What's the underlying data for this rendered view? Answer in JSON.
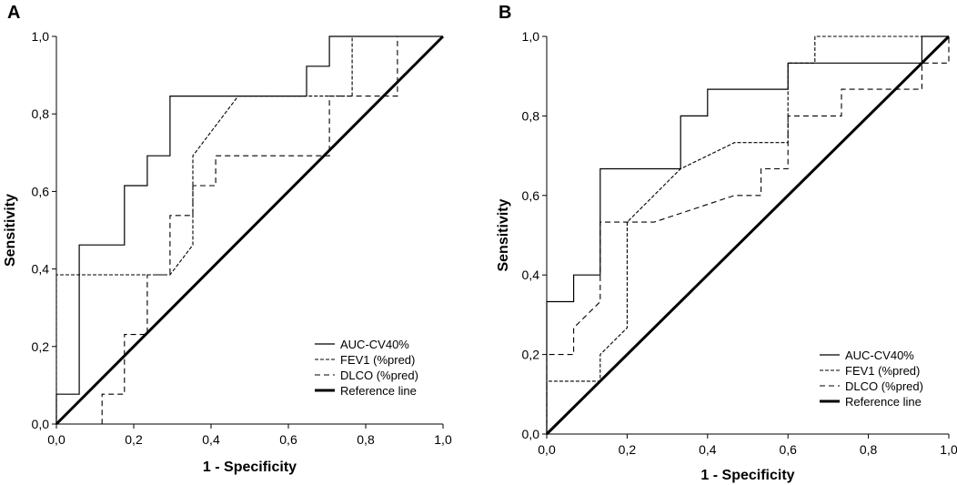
{
  "chart_data": [
    {
      "type": "line",
      "panel_label": "A",
      "xlabel": "1 - Specificity",
      "ylabel": "Sensitivity",
      "xlim": [
        0,
        1
      ],
      "ylim": [
        0,
        1
      ],
      "xticks": [
        "0,0",
        "0,2",
        "0,4",
        "0,6",
        "0,8",
        "1,0"
      ],
      "yticks": [
        "0,0",
        "0,2",
        "0,4",
        "0,6",
        "0,8",
        "1,0"
      ],
      "grid": false,
      "legend_position": "bottom-right",
      "series": [
        {
          "name": "AUC-CV40%",
          "style": "solid",
          "x": [
            0,
            0,
            0.059,
            0.059,
            0.176,
            0.176,
            0.235,
            0.235,
            0.294,
            0.294,
            0.647,
            0.647,
            0.706,
            0.706,
            1.0
          ],
          "y": [
            0,
            0.077,
            0.077,
            0.462,
            0.462,
            0.615,
            0.615,
            0.692,
            0.692,
            0.846,
            0.846,
            0.923,
            0.923,
            1.0,
            1.0
          ]
        },
        {
          "name": "FEV1 (%pred)",
          "style": "dense-dash",
          "x": [
            0,
            0,
            0.294,
            0.353,
            0.353,
            0.47,
            0.765,
            0.765,
            0.882,
            0.882,
            1.0
          ],
          "y": [
            0,
            0.385,
            0.385,
            0.462,
            0.692,
            0.846,
            0.846,
            1.0,
            1.0,
            1.0,
            1.0
          ]
        },
        {
          "name": "DLCO (%pred)",
          "style": "dash",
          "x": [
            0,
            0.118,
            0.118,
            0.176,
            0.176,
            0.235,
            0.235,
            0.294,
            0.294,
            0.353,
            0.353,
            0.412,
            0.412,
            0.706,
            0.706,
            0.882,
            0.882,
            1.0
          ],
          "y": [
            0,
            0,
            0.077,
            0.077,
            0.231,
            0.231,
            0.385,
            0.385,
            0.538,
            0.538,
            0.615,
            0.615,
            0.692,
            0.692,
            0.846,
            0.846,
            1.0,
            1.0
          ]
        },
        {
          "name": "Reference line",
          "style": "thick",
          "x": [
            0,
            1
          ],
          "y": [
            0,
            1
          ]
        }
      ]
    },
    {
      "type": "line",
      "panel_label": "B",
      "xlabel": "1 - Specificity",
      "ylabel": "Sensitivity",
      "xlim": [
        0,
        1
      ],
      "ylim": [
        0,
        1
      ],
      "xticks": [
        "0,0",
        "0,2",
        "0,4",
        "0,6",
        "0,8",
        "1,0"
      ],
      "yticks": [
        "0,0",
        "0,2",
        "0,4",
        "0,6",
        "0,8",
        "1,0"
      ],
      "grid": false,
      "legend_position": "bottom-right",
      "series": [
        {
          "name": "AUC-CV40%",
          "style": "solid",
          "x": [
            0,
            0,
            0.067,
            0.067,
            0.133,
            0.133,
            0.333,
            0.333,
            0.4,
            0.4,
            0.6,
            0.6,
            0.933,
            0.933,
            1.0
          ],
          "y": [
            0,
            0.333,
            0.333,
            0.4,
            0.4,
            0.667,
            0.667,
            0.8,
            0.8,
            0.867,
            0.867,
            0.933,
            0.933,
            1.0,
            1.0
          ]
        },
        {
          "name": "FEV1 (%pred)",
          "style": "dense-dash",
          "x": [
            0,
            0,
            0.133,
            0.133,
            0.2,
            0.2,
            0.333,
            0.467,
            0.6,
            0.6,
            0.667,
            0.667,
            1.0,
            1.0
          ],
          "y": [
            0,
            0.133,
            0.133,
            0.2,
            0.267,
            0.533,
            0.667,
            0.733,
            0.733,
            0.933,
            0.933,
            1.0,
            1.0,
            1.0
          ]
        },
        {
          "name": "DLCO (%pred)",
          "style": "dash",
          "x": [
            0,
            0,
            0.067,
            0.067,
            0.133,
            0.133,
            0.2,
            0.267,
            0.467,
            0.533,
            0.533,
            0.6,
            0.6,
            0.733,
            0.733,
            0.933,
            0.933,
            1.0,
            1.0
          ],
          "y": [
            0,
            0.2,
            0.2,
            0.267,
            0.333,
            0.533,
            0.533,
            0.533,
            0.6,
            0.6,
            0.667,
            0.667,
            0.8,
            0.8,
            0.867,
            0.867,
            0.933,
            0.933,
            1.0
          ]
        },
        {
          "name": "Reference line",
          "style": "thick",
          "x": [
            0,
            1
          ],
          "y": [
            0,
            1
          ]
        }
      ]
    }
  ]
}
